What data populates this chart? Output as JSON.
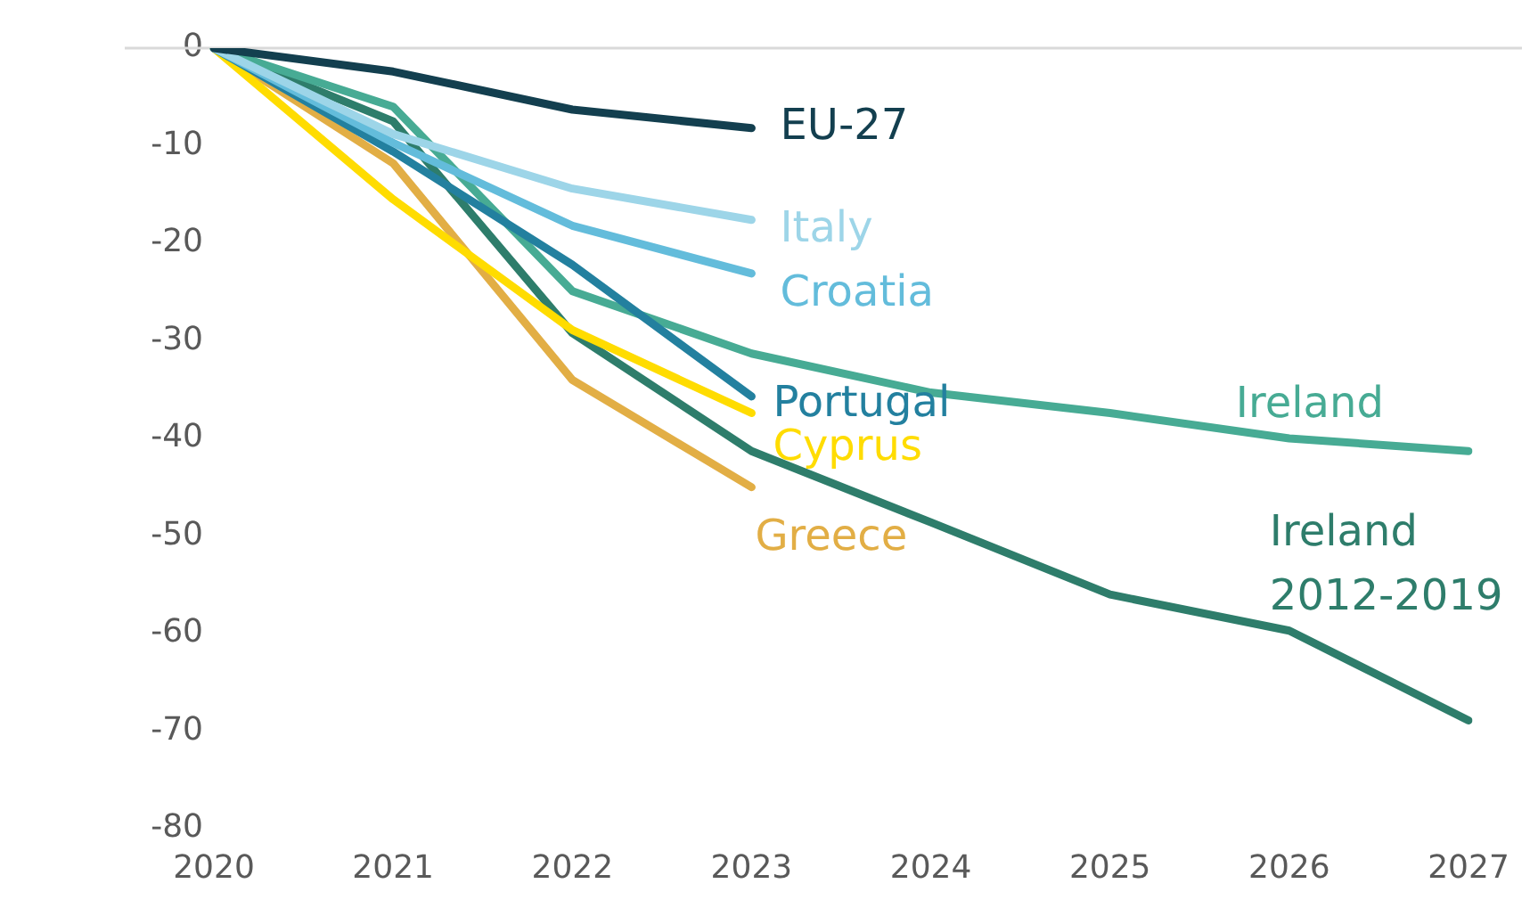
{
  "chart_data": {
    "type": "line",
    "categories": [
      "2020",
      "2021",
      "2022",
      "2023",
      "2024",
      "2025",
      "2026",
      "2027"
    ],
    "ylim": [
      -80,
      0
    ],
    "yticks": [
      0,
      -10,
      -20,
      -30,
      -40,
      -50,
      -60,
      -70,
      -80
    ],
    "grid": false,
    "legend": false,
    "marker": "none",
    "line_style": "solid",
    "ref_lines": [
      {
        "axis": "y",
        "value": 0,
        "color": "#d9d9d9"
      }
    ],
    "series": [
      {
        "name": "EU-27",
        "color": "#133f4f",
        "values": [
          0,
          -2.4,
          -6.3,
          -8.2,
          null,
          null,
          null,
          null
        ]
      },
      {
        "name": "Italy",
        "color": "#9dd5e8",
        "values": [
          0,
          -8.8,
          -14.4,
          -17.6,
          null,
          null,
          null,
          null
        ]
      },
      {
        "name": "Croatia",
        "color": "#63bcdb",
        "values": [
          0,
          -9.7,
          -18.2,
          -23.1,
          null,
          null,
          null,
          null
        ]
      },
      {
        "name": "Portugal",
        "color": "#23809f",
        "values": [
          0,
          -10.6,
          -22.2,
          -35.7,
          null,
          null,
          null,
          null
        ]
      },
      {
        "name": "Cyprus",
        "color": "#ffdc00",
        "values": [
          0,
          -15.5,
          -28.9,
          -37.4,
          null,
          null,
          null,
          null
        ]
      },
      {
        "name": "Greece",
        "color": "#e2ae45",
        "values": [
          0,
          -11.8,
          -34.0,
          -45.0,
          null,
          null,
          null,
          null
        ]
      },
      {
        "name": "Ireland",
        "color": "#47ab94",
        "values": [
          0,
          -6.0,
          -24.9,
          -31.3,
          -35.3,
          -37.4,
          -40.0,
          -41.3
        ]
      },
      {
        "name": "Ireland 2012-2019",
        "color": "#2e7d6b",
        "values": [
          0,
          -7.5,
          -29.2,
          -41.3,
          -48.6,
          -56.0,
          -59.7,
          -68.9
        ]
      }
    ]
  }
}
